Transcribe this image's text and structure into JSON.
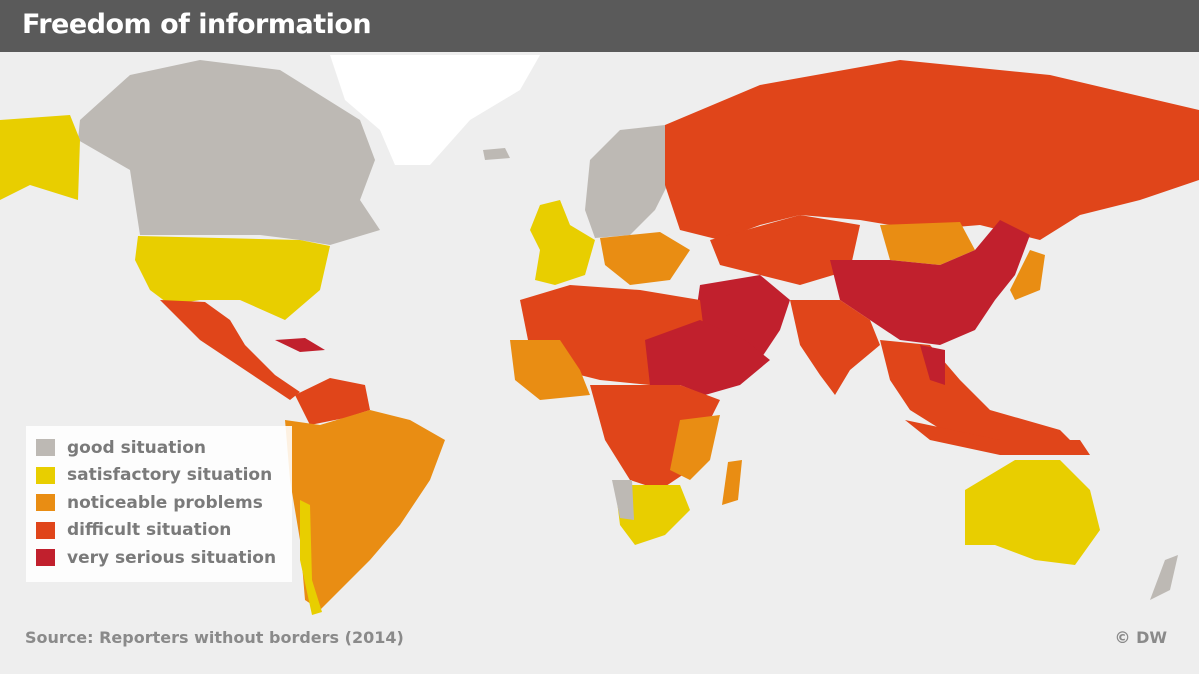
{
  "title": "Freedom of information",
  "legend": [
    {
      "label": "good situation",
      "color": "#bdb9b4"
    },
    {
      "label": "satisfactory situation",
      "color": "#e8ce00"
    },
    {
      "label": "noticeable problems",
      "color": "#e98d13"
    },
    {
      "label": "difficult situation",
      "color": "#e0451a"
    },
    {
      "label": "very serious situation",
      "color": "#c1202d"
    }
  ],
  "source": "Source: Reporters without borders (2014)",
  "copyright": "© DW",
  "colors": {
    "ocean": "#eeeeee",
    "ice": "#ffffff",
    "title_bar": "#5a5a5a"
  }
}
